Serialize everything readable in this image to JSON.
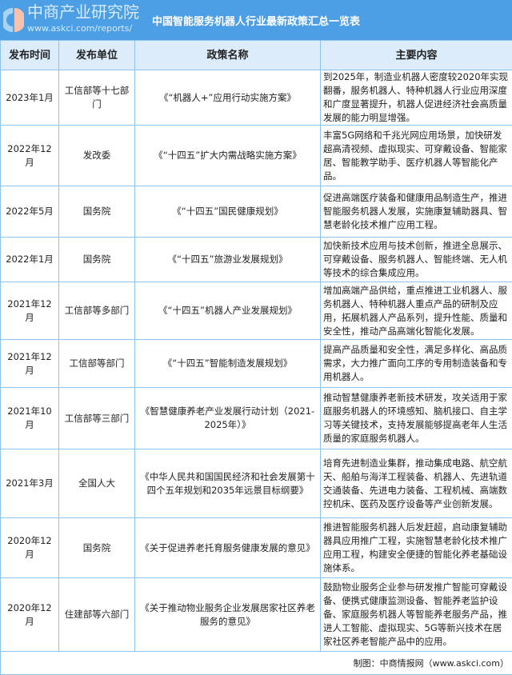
{
  "title": "中国智能服务机器人行业最新政策汇总一览表",
  "headers": [
    "发布时间",
    "发布单位",
    "政策名称",
    "主要内容"
  ],
  "rows": [
    {
      "date": "2023年1月",
      "unit": "工信部等十七部门",
      "name": "《“机器人+”应用行动实施方案》",
      "content": "到2025年，制造业机器人密度较2020年实现翻番，服务机器人、特种机器人行业应用深度和广度显著提升，机器人促进经济社会高质量发展的能力明显增强。"
    },
    {
      "date": "2022年12月",
      "unit": "发改委",
      "name": "《“十四五”扩大内需战略实施方案》",
      "content": "丰富5G网络和千兆光网应用场景，加快研发超高清视频、虚拟现实、可穿戴设备、智能家居、智能教学助手、医疗机器人等智能化产品。"
    },
    {
      "date": "2022年5月",
      "unit": "国务院",
      "name": "《“十四五”国民健康规划》",
      "content": "促进高端医疗装备和健康用品制造生产，推进智能服务机器人发展，实施康复辅助器具、智慧老龄化技术推广应用工程。"
    },
    {
      "date": "2022年1月",
      "unit": "国务院",
      "name": "《“十四五”旅游业发展规划》",
      "content": "加快新技术应用与技术创新，推进全息展示、可穿戴设备、服务机器人、智能终端、无人机等技术的综合集成应用。"
    },
    {
      "date": "2021年12月",
      "unit": "工信部等多部门",
      "name": "《“十四五”机器人产业发展规划》",
      "content": "增加高端产品供给，重点推进工业机器人、服务机器人、特种机器人重点产品的研制及应用，拓展机器人产品系列，提升性能、质量和安全性，推动产品高端化智能化发展。"
    },
    {
      "date": "2021年12月",
      "unit": "工信部等部门",
      "name": "《“十四五”智能制造发展规划》",
      "content": "提高产品质量和安全性，满足多样化、高品质需求，大力推广面向工序的专用制造装备和专用机器人。"
    },
    {
      "date": "2021年10月",
      "unit": "工信部等三部门",
      "name": "《智慧健康养老产业发展行动计划（2021-2025年）》",
      "content": "推动智慧健康养老新技术研发，攻关适用于家庭服务机器人的环境感知、脑机接口、自主学习等关键技术，支持发展能够提高老年人生活质量的家庭服务机器人。"
    },
    {
      "date": "2021年3月",
      "unit": "全国人大",
      "name": "《中华人民共和国国民经济和社会发展第十四个五年规划和2035年远景目标纲要》",
      "content": "培育先进制造业集群，推动集成电路、航空航天、船舶与海洋工程装备、机器人、先进轨道交通装备、先进电力装备、工程机械、高端数控机床、医药及医疗设备等产业创新发展。"
    },
    {
      "date": "2020年12月",
      "unit": "国务院",
      "name": "《关于促进养老托育服务健康发展的意见》",
      "content": "推进智能服务机器人后发赶超，启动康复辅助器具应用推广工程，实施智慧老龄化技术推广应用工程，构建安全便捷的智能化养老基础设施体系。"
    },
    {
      "date": "2020年12月",
      "unit": "住建部等六部门",
      "name": "《关于推动物业服务企业发展居家社区养老服务的意见》",
      "content": "鼓励物业服务企业参与研发推广智能可穿戴设备、便携式健康监测设备、智能养老监护设备、家庭服务机器人等智能养老服务产品，推进人工智能、虚拟现实、5G等新兴技术在居家社区养老智能产品中的应用。"
    }
  ],
  "footer": "制图：中商情报网（www.askci.com）",
  "watermark": {
    "name": "中商产业研究院",
    "url": "www.askci.com/reports/"
  },
  "colors": {
    "title_bg": "#4c9fe4",
    "header_bg": "#dcecfb",
    "border": "#8cc2ee"
  }
}
